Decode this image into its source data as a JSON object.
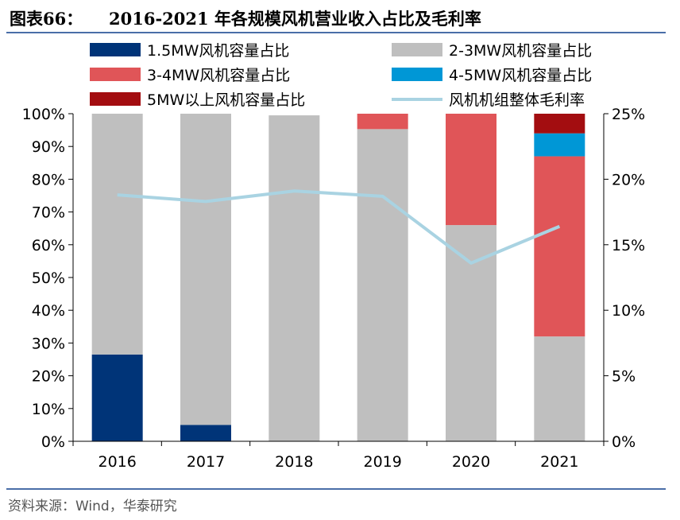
{
  "figure": {
    "label": "图表66：",
    "title": "2016-2021 年各规模风机营业收入占比及毛利率"
  },
  "source": {
    "prefix": "资料来源：",
    "text": "Wind，华泰研究"
  },
  "chart_data": {
    "type": "bar",
    "stacked": true,
    "categories": [
      "2016",
      "2017",
      "2018",
      "2019",
      "2020",
      "2021"
    ],
    "series": [
      {
        "name": "1.5MW风机容量占比",
        "color": "#003478",
        "axis": "left",
        "values": [
          26.5,
          5,
          0,
          0,
          0,
          0
        ]
      },
      {
        "name": "2-3MW风机容量占比",
        "color": "#bfbfbf",
        "axis": "left",
        "values": [
          73.5,
          95,
          99.5,
          95.3,
          66,
          32
        ]
      },
      {
        "name": "3-4MW风机容量占比",
        "color": "#e05558",
        "axis": "left",
        "values": [
          0,
          0,
          0,
          4.7,
          34,
          55
        ]
      },
      {
        "name": "4-5MW风机容量占比",
        "color": "#0097d6",
        "axis": "left",
        "values": [
          0,
          0,
          0,
          0,
          0,
          7
        ]
      },
      {
        "name": "5MW以上风机容量占比",
        "color": "#a30d10",
        "axis": "left",
        "values": [
          0,
          0,
          0,
          0,
          0,
          6
        ]
      }
    ],
    "line_series": {
      "name": "风机机组整体毛利率",
      "color": "#a9d3e2",
      "axis": "right",
      "values": [
        18.8,
        18.3,
        19.1,
        18.7,
        13.6,
        16.4
      ]
    },
    "left_axis": {
      "ylim": [
        0,
        100
      ],
      "ticks": [
        "0%",
        "10%",
        "20%",
        "30%",
        "40%",
        "50%",
        "60%",
        "70%",
        "80%",
        "90%",
        "100%"
      ]
    },
    "right_axis": {
      "ylim": [
        0,
        25
      ],
      "ticks": [
        "0%",
        "5%",
        "10%",
        "15%",
        "20%",
        "25%"
      ]
    },
    "legend_position": "top",
    "grid": false
  }
}
